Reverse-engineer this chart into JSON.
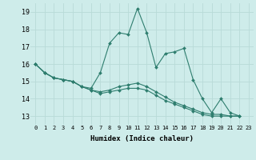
{
  "xlabel": "Humidex (Indice chaleur)",
  "bg_color": "#ceecea",
  "grid_color": "#b8dbd8",
  "line_color": "#2e7d6e",
  "xlim": [
    -0.5,
    23.5
  ],
  "ylim": [
    12.5,
    19.5
  ],
  "yticks": [
    13,
    14,
    15,
    16,
    17,
    18,
    19
  ],
  "xticks": [
    0,
    1,
    2,
    3,
    4,
    5,
    6,
    7,
    8,
    9,
    10,
    11,
    12,
    13,
    14,
    15,
    16,
    17,
    18,
    19,
    20,
    21,
    22,
    23
  ],
  "series": [
    [
      16.0,
      15.5,
      15.2,
      15.1,
      15.0,
      14.7,
      14.6,
      15.5,
      17.2,
      17.8,
      17.7,
      19.2,
      17.8,
      15.8,
      16.6,
      16.7,
      16.9,
      15.1,
      14.0,
      13.2,
      14.0,
      13.2,
      13.0
    ],
    [
      16.0,
      15.5,
      15.2,
      15.1,
      15.0,
      14.7,
      14.5,
      14.4,
      14.5,
      14.7,
      14.8,
      14.9,
      14.7,
      14.4,
      14.1,
      13.8,
      13.6,
      13.4,
      13.2,
      13.1,
      13.1,
      13.0,
      13.0
    ],
    [
      16.0,
      15.5,
      15.2,
      15.1,
      15.0,
      14.7,
      14.5,
      14.3,
      14.4,
      14.5,
      14.6,
      14.6,
      14.5,
      14.2,
      13.9,
      13.7,
      13.5,
      13.3,
      13.1,
      13.0,
      13.0,
      13.0,
      13.0
    ]
  ],
  "series_x": [
    [
      0,
      1,
      2,
      3,
      4,
      5,
      6,
      7,
      8,
      9,
      10,
      11,
      12,
      13,
      14,
      15,
      16,
      17,
      18,
      19,
      20,
      21,
      22
    ],
    [
      0,
      1,
      2,
      3,
      4,
      5,
      6,
      7,
      8,
      9,
      10,
      11,
      12,
      13,
      14,
      15,
      16,
      17,
      18,
      19,
      20,
      21,
      22
    ],
    [
      0,
      1,
      2,
      3,
      4,
      5,
      6,
      7,
      8,
      9,
      10,
      11,
      12,
      13,
      14,
      15,
      16,
      17,
      18,
      19,
      20,
      21,
      22
    ]
  ]
}
